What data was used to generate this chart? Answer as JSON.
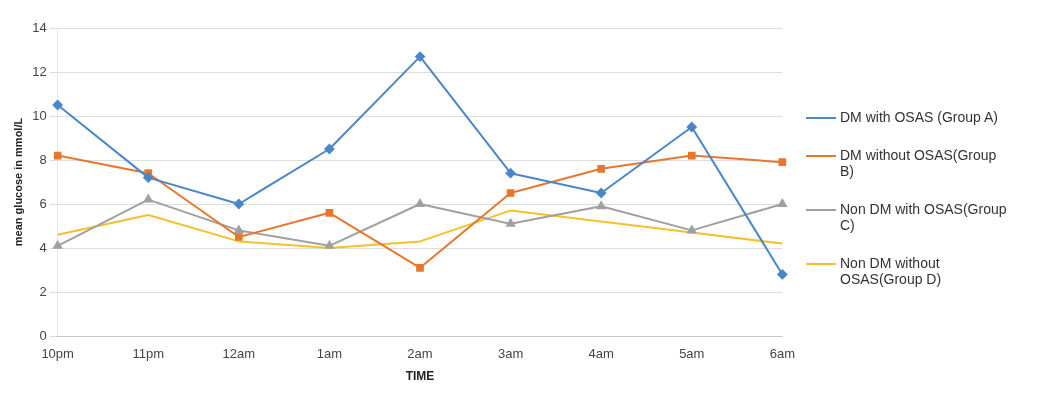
{
  "chart_data": {
    "type": "line",
    "xlabel": "TIME",
    "ylabel": "mean glucose in mmol/L",
    "categories": [
      "10pm",
      "11pm",
      "12am",
      "1am",
      "2am",
      "3am",
      "4am",
      "5am",
      "6am"
    ],
    "ylim": [
      0,
      14
    ],
    "yticks": [
      0,
      2,
      4,
      6,
      8,
      10,
      12,
      14
    ],
    "grid": "y",
    "legend": "right",
    "series": [
      {
        "name": "DM with OSAS (Group A)",
        "color": "#4a86c8",
        "marker": "diamond",
        "values": [
          10.5,
          7.2,
          6.0,
          8.5,
          12.7,
          7.4,
          6.5,
          9.5,
          2.8
        ]
      },
      {
        "name": "DM without OSAS(Group B)",
        "color": "#e8772e",
        "marker": "square",
        "values": [
          8.2,
          7.4,
          4.5,
          5.6,
          3.1,
          6.5,
          7.6,
          8.2,
          7.9
        ]
      },
      {
        "name": "Non DM with OSAS(Group C)",
        "color": "#a0a0a0",
        "marker": "triangle",
        "values": [
          4.1,
          6.2,
          4.8,
          4.1,
          6.0,
          5.1,
          5.9,
          4.8,
          6.0
        ]
      },
      {
        "name": "Non DM without OSAS(Group D)",
        "color": "#f5c02a",
        "marker": "none",
        "values": [
          4.6,
          5.5,
          4.3,
          4.0,
          4.3,
          5.7,
          5.2,
          4.7,
          4.2
        ]
      }
    ]
  }
}
